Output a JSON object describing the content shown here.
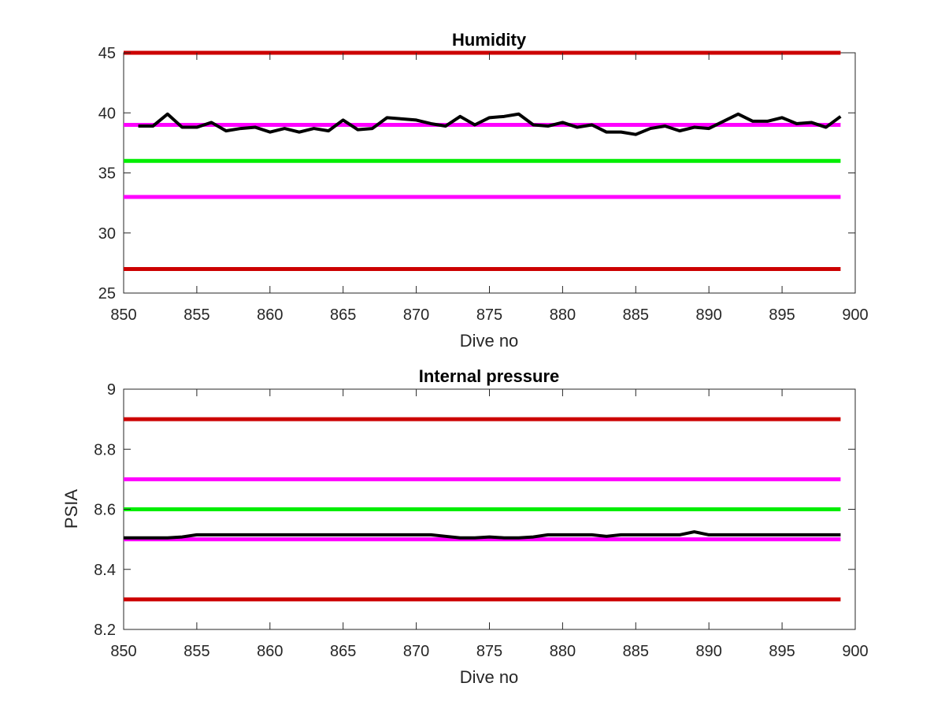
{
  "chart_data": [
    {
      "type": "line",
      "title": "Humidity",
      "xlabel": "Dive no",
      "ylabel": "",
      "xlim": [
        850,
        900
      ],
      "ylim": [
        25,
        45
      ],
      "xticks": [
        850,
        855,
        860,
        865,
        870,
        875,
        880,
        885,
        890,
        895,
        900
      ],
      "yticks": [
        25,
        30,
        35,
        40,
        45
      ],
      "grid": false,
      "x": [
        851,
        852,
        853,
        854,
        855,
        856,
        857,
        858,
        859,
        860,
        861,
        862,
        863,
        864,
        865,
        866,
        867,
        868,
        869,
        870,
        871,
        872,
        873,
        874,
        875,
        876,
        877,
        878,
        879,
        880,
        881,
        882,
        883,
        884,
        885,
        886,
        887,
        888,
        889,
        890,
        891,
        892,
        893,
        894,
        895,
        896,
        897,
        898,
        899
      ],
      "series": [
        {
          "color": "#000000",
          "values": [
            38.9,
            38.9,
            39.9,
            38.8,
            38.8,
            39.2,
            38.5,
            38.7,
            38.8,
            38.4,
            38.7,
            38.4,
            38.7,
            38.5,
            39.4,
            38.6,
            38.7,
            39.6,
            39.5,
            39.4,
            39.1,
            38.9,
            39.7,
            39.0,
            39.6,
            39.7,
            39.9,
            39.0,
            38.9,
            39.2,
            38.8,
            39.0,
            38.4,
            38.4,
            38.2,
            38.7,
            38.9,
            38.5,
            38.8,
            38.7,
            39.3,
            39.9,
            39.3,
            39.3,
            39.6,
            39.1,
            39.2,
            38.8,
            39.7
          ]
        }
      ],
      "reference_lines": [
        {
          "y": 45,
          "color": "#cc0000"
        },
        {
          "y": 39,
          "color": "#ff00ff"
        },
        {
          "y": 36,
          "color": "#00ee00"
        },
        {
          "y": 33,
          "color": "#ff00ff"
        },
        {
          "y": 27,
          "color": "#cc0000"
        }
      ],
      "line_x_range": [
        850,
        899
      ]
    },
    {
      "type": "line",
      "title": "Internal pressure",
      "xlabel": "Dive no",
      "ylabel": "PSIA",
      "xlim": [
        850,
        900
      ],
      "ylim": [
        8.2,
        9
      ],
      "xticks": [
        850,
        855,
        860,
        865,
        870,
        875,
        880,
        885,
        890,
        895,
        900
      ],
      "yticks": [
        8.2,
        8.4,
        8.6,
        8.8,
        9
      ],
      "ytick_labels": [
        "8.2",
        "8.4",
        "8.6",
        "8.8",
        "9"
      ],
      "grid": false,
      "x": [
        850,
        851,
        852,
        853,
        854,
        855,
        856,
        857,
        858,
        859,
        860,
        861,
        862,
        863,
        864,
        865,
        866,
        867,
        868,
        869,
        870,
        871,
        872,
        873,
        874,
        875,
        876,
        877,
        878,
        879,
        880,
        881,
        882,
        883,
        884,
        885,
        886,
        887,
        888,
        889,
        890,
        891,
        892,
        893,
        894,
        895,
        896,
        897,
        898,
        899
      ],
      "series": [
        {
          "color": "#000000",
          "values": [
            8.505,
            8.505,
            8.505,
            8.505,
            8.508,
            8.515,
            8.515,
            8.515,
            8.515,
            8.515,
            8.515,
            8.515,
            8.515,
            8.515,
            8.515,
            8.515,
            8.515,
            8.515,
            8.515,
            8.515,
            8.515,
            8.515,
            8.51,
            8.505,
            8.505,
            8.508,
            8.505,
            8.505,
            8.508,
            8.515,
            8.515,
            8.515,
            8.515,
            8.51,
            8.515,
            8.515,
            8.515,
            8.515,
            8.515,
            8.525,
            8.515,
            8.515,
            8.515,
            8.515,
            8.515,
            8.515,
            8.515,
            8.515,
            8.515,
            8.515
          ]
        }
      ],
      "reference_lines": [
        {
          "y": 8.9,
          "color": "#cc0000"
        },
        {
          "y": 8.7,
          "color": "#ff00ff"
        },
        {
          "y": 8.6,
          "color": "#00ee00"
        },
        {
          "y": 8.5,
          "color": "#ff00ff"
        },
        {
          "y": 8.3,
          "color": "#cc0000"
        }
      ],
      "line_x_range": [
        850,
        899
      ]
    }
  ]
}
